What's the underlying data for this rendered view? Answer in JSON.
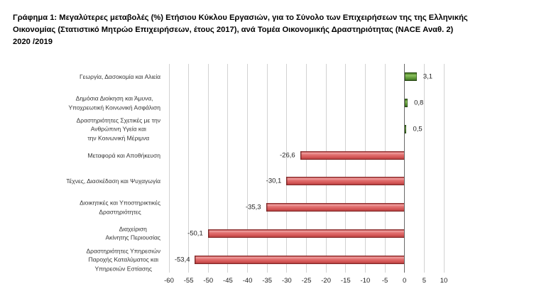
{
  "title": {
    "lines": [
      "Γράφημα 1: Μεγαλύτερες μεταβολές (%) Ετήσιου Κύκλου Εργασιών, για το Σύνολο των Επιχειρήσεων της της Ελληνικής",
      "Οικονομίας (Στατιστικό Μητρώο Επιχειρήσεων, έτους 2017), ανά Τομέα Οικονομικής Δραστηριότητας (NACE Αναθ. 2)",
      "2020 /2019"
    ]
  },
  "colors": {
    "negative_bar": "#d85c5c",
    "positive_bar": "#4f8a2e",
    "gridline": "#d2d2d2",
    "zero_axis": "#6a6a6a"
  },
  "chart_data": {
    "type": "bar",
    "orientation": "horizontal",
    "title": "Γράφημα 1: Μεγαλύτερες μεταβολές (%) Ετήσιου Κύκλου Εργασιών, για το Σύνολο των Επιχειρήσεων της της Ελληνικής Οικονομίας (Στατιστικό Μητρώο Επιχειρήσεων, έτους 2017), ανά Τομέα Οικονομικής Δραστηριότητας (NACE Αναθ. 2) 2020 /2019",
    "xlabel": "",
    "ylabel": "",
    "categories": [
      "Γεωργία, Δασοκομία και Αλιεία",
      "Δημόσια Διοίκηση και Άμυνα,\nΥποχρεωτική Κοινωνική Ασφάλιση",
      "Δραστηριότητες Σχετικές με την\nΑνθρώπινη Υγεία και\nτην Κοινωνική Μέριμνα",
      "Μεταφορά και Αποθήκευση",
      "Τέχνες, Διασκέδαση και Ψυχαγωγία",
      "Διοικητικές και Υποστηρικτικές\nΔραστηριότητες",
      "Διαχείριση\nΑκίνητης Περιουσίας",
      "Δραστηριότητες Υπηρεσιών\nΠαροχής Καταλύματος και\nΥπηρεσιών Εστίασης"
    ],
    "values": [
      3.1,
      0.8,
      0.5,
      -26.6,
      -30.1,
      -35.3,
      -50.1,
      -53.4
    ],
    "value_labels": [
      "3,1",
      "0,8",
      "0,5",
      "-26,6",
      "-30,1",
      "-35,3",
      "-50,1",
      "-53,4"
    ],
    "xlim": [
      -60,
      10
    ],
    "xticks": [
      -60,
      -55,
      -50,
      -45,
      -40,
      -35,
      -30,
      -25,
      -20,
      -15,
      -10,
      -5,
      0,
      5,
      10
    ],
    "xtick_labels": [
      "-60",
      "-55",
      "-50",
      "-45",
      "-40",
      "-35",
      "-30",
      "-25",
      "-20",
      "-15",
      "-10",
      "-5",
      "0",
      "5",
      "10"
    ],
    "grid": true,
    "legend": null
  }
}
